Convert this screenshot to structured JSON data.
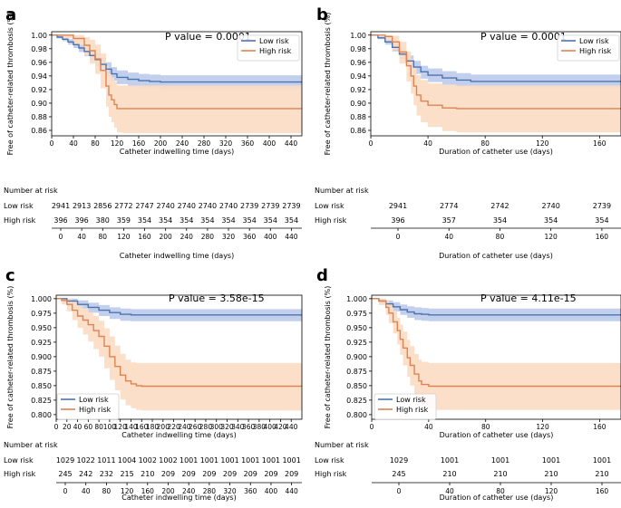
{
  "colors": {
    "low": "#4C72B0",
    "high": "#DD8452",
    "low_band": "#B9C8EA",
    "high_band": "#FBDCC3"
  },
  "chart_data": [
    {
      "panel": "a",
      "type": "line",
      "title": "",
      "pvalue": "P value = 0.0001",
      "ylabel": "Free of catheter-related thrombosis (%)",
      "xlabel": "Catheter indwelling time (days)",
      "xlim": [
        0,
        460
      ],
      "ylim": [
        0.852,
        1.005
      ],
      "xticks": [
        0,
        40,
        80,
        120,
        160,
        200,
        240,
        280,
        320,
        360,
        400,
        440
      ],
      "yticks": [
        1.0,
        0.98,
        0.96,
        0.94,
        0.92,
        0.9,
        0.88,
        0.86
      ],
      "ytick_labels": [
        "1.00",
        "0.98",
        "0.96",
        "0.94",
        "0.92",
        "0.90",
        "0.88",
        "0.86"
      ],
      "legend": {
        "position": "top-right",
        "entries": [
          "Low risk",
          "High risk"
        ]
      },
      "series": [
        {
          "name": "Low risk",
          "x": [
            0,
            10,
            20,
            30,
            40,
            50,
            60,
            70,
            80,
            90,
            100,
            110,
            120,
            140,
            160,
            180,
            200,
            460
          ],
          "y": [
            1.0,
            0.997,
            0.994,
            0.99,
            0.986,
            0.981,
            0.976,
            0.97,
            0.964,
            0.957,
            0.95,
            0.943,
            0.938,
            0.935,
            0.933,
            0.932,
            0.931,
            0.931
          ],
          "lower": [
            1.0,
            0.995,
            0.991,
            0.986,
            0.981,
            0.975,
            0.969,
            0.962,
            0.955,
            0.947,
            0.94,
            0.933,
            0.928,
            0.925,
            0.923,
            0.922,
            0.921,
            0.921
          ],
          "upper": [
            1.0,
            0.999,
            0.997,
            0.994,
            0.991,
            0.987,
            0.983,
            0.978,
            0.973,
            0.967,
            0.96,
            0.953,
            0.948,
            0.945,
            0.943,
            0.942,
            0.941,
            0.941
          ]
        },
        {
          "name": "High risk",
          "x": [
            0,
            20,
            40,
            60,
            70,
            80,
            90,
            100,
            105,
            110,
            115,
            120,
            130,
            460
          ],
          "y": [
            1.0,
            1.0,
            0.995,
            0.985,
            0.977,
            0.965,
            0.948,
            0.925,
            0.912,
            0.905,
            0.898,
            0.892,
            0.892,
            0.892
          ],
          "lower": [
            1.0,
            0.995,
            0.985,
            0.97,
            0.958,
            0.943,
            0.922,
            0.895,
            0.88,
            0.872,
            0.864,
            0.857,
            0.856,
            0.856
          ],
          "upper": [
            1.0,
            1.0,
            1.0,
            0.997,
            0.993,
            0.986,
            0.973,
            0.955,
            0.944,
            0.938,
            0.932,
            0.926,
            0.926,
            0.926
          ]
        }
      ],
      "risk_table": {
        "header": "Number at risk",
        "rows": [
          {
            "label": "Low risk",
            "values": [
              "2941",
              "2913",
              "2856",
              "2772",
              "2747",
              "2740",
              "2740",
              "2740",
              "2740",
              "2739",
              "2739",
              "2739"
            ]
          },
          {
            "label": "High risk",
            "values": [
              "396",
              "396",
              "380",
              "359",
              "354",
              "354",
              "354",
              "354",
              "354",
              "354",
              "354",
              "354"
            ]
          }
        ],
        "xticks": [
          0,
          40,
          80,
          120,
          160,
          200,
          240,
          280,
          320,
          360,
          400,
          440
        ],
        "xlabel": "Catheter indwelling time (days)"
      }
    },
    {
      "panel": "b",
      "type": "line",
      "title": "",
      "pvalue": "P value = 0.0001",
      "ylabel": "Free of catheter-related thrombosis (%)",
      "xlabel": "Duration of catheter use (days)",
      "xlim": [
        0,
        175
      ],
      "ylim": [
        0.852,
        1.005
      ],
      "xticks": [
        0,
        40,
        80,
        120,
        160
      ],
      "yticks": [
        1.0,
        0.98,
        0.96,
        0.94,
        0.92,
        0.9,
        0.88,
        0.86
      ],
      "ytick_labels": [
        "1.00",
        "0.98",
        "0.96",
        "0.94",
        "0.92",
        "0.90",
        "0.88",
        "0.86"
      ],
      "legend": {
        "position": "top-right",
        "entries": [
          "Low risk",
          "High risk"
        ]
      },
      "series": [
        {
          "name": "Low risk",
          "x": [
            0,
            5,
            10,
            15,
            20,
            25,
            30,
            35,
            40,
            50,
            60,
            70,
            175
          ],
          "y": [
            1.0,
            0.996,
            0.99,
            0.982,
            0.972,
            0.962,
            0.953,
            0.946,
            0.941,
            0.937,
            0.934,
            0.932,
            0.931
          ],
          "lower": [
            1.0,
            0.994,
            0.986,
            0.976,
            0.965,
            0.953,
            0.943,
            0.936,
            0.931,
            0.927,
            0.924,
            0.922,
            0.921
          ],
          "upper": [
            1.0,
            0.998,
            0.994,
            0.988,
            0.979,
            0.97,
            0.962,
            0.955,
            0.951,
            0.947,
            0.944,
            0.942,
            0.941
          ]
        },
        {
          "name": "High risk",
          "x": [
            0,
            10,
            15,
            20,
            25,
            28,
            30,
            32,
            35,
            40,
            50,
            60,
            175
          ],
          "y": [
            1.0,
            0.998,
            0.99,
            0.975,
            0.955,
            0.94,
            0.925,
            0.912,
            0.903,
            0.897,
            0.893,
            0.892,
            0.892
          ],
          "lower": [
            1.0,
            0.992,
            0.978,
            0.958,
            0.932,
            0.914,
            0.897,
            0.882,
            0.872,
            0.865,
            0.859,
            0.857,
            0.856
          ],
          "upper": [
            1.0,
            1.0,
            0.999,
            0.99,
            0.976,
            0.965,
            0.952,
            0.941,
            0.934,
            0.929,
            0.927,
            0.926,
            0.926
          ]
        }
      ],
      "risk_table": {
        "header": "Number at risk",
        "rows": [
          {
            "label": "Low risk",
            "values": [
              "2941",
              "2774",
              "2742",
              "2740",
              "2739"
            ]
          },
          {
            "label": "High risk",
            "values": [
              "396",
              "357",
              "354",
              "354",
              "354"
            ]
          }
        ],
        "xticks": [
          0,
          40,
          80,
          120,
          160
        ],
        "xlabel": "Duration of catheter use (days)"
      }
    },
    {
      "panel": "c",
      "type": "line",
      "title": "",
      "pvalue": "P value = 3.58e-15",
      "ylabel": "Free of catheter-related thrombosis (%)",
      "xlabel": "Catheter indwelling time (days)",
      "xlim": [
        0,
        460
      ],
      "ylim": [
        0.792,
        1.006
      ],
      "xticks": [
        0,
        20,
        40,
        60,
        80,
        100,
        120,
        140,
        160,
        180,
        200,
        220,
        240,
        260,
        280,
        300,
        320,
        340,
        360,
        380,
        400,
        420,
        440
      ],
      "yticks": [
        1.0,
        0.975,
        0.95,
        0.925,
        0.9,
        0.875,
        0.85,
        0.825,
        0.8
      ],
      "ytick_labels": [
        "1.000",
        "0.975",
        "0.950",
        "0.925",
        "0.900",
        "0.875",
        "0.850",
        "0.825",
        "0.800"
      ],
      "legend": {
        "position": "bottom-left",
        "entries": [
          "Low risk",
          "High risk"
        ]
      },
      "series": [
        {
          "name": "Low risk",
          "x": [
            0,
            20,
            40,
            60,
            80,
            100,
            120,
            140,
            460
          ],
          "y": [
            1.0,
            0.996,
            0.99,
            0.985,
            0.98,
            0.976,
            0.973,
            0.972,
            0.972
          ],
          "lower": [
            1.0,
            0.991,
            0.983,
            0.976,
            0.97,
            0.965,
            0.962,
            0.961,
            0.961
          ],
          "upper": [
            1.0,
            1.0,
            0.997,
            0.993,
            0.989,
            0.985,
            0.983,
            0.982,
            0.982
          ]
        },
        {
          "name": "High risk",
          "x": [
            0,
            10,
            20,
            30,
            40,
            50,
            60,
            70,
            80,
            90,
            100,
            110,
            120,
            130,
            140,
            150,
            160,
            460
          ],
          "y": [
            1.0,
            0.997,
            0.99,
            0.98,
            0.97,
            0.963,
            0.955,
            0.945,
            0.935,
            0.918,
            0.9,
            0.883,
            0.868,
            0.858,
            0.853,
            0.85,
            0.849,
            0.849
          ],
          "lower": [
            1.0,
            0.99,
            0.978,
            0.963,
            0.95,
            0.938,
            0.926,
            0.913,
            0.9,
            0.88,
            0.86,
            0.842,
            0.826,
            0.816,
            0.811,
            0.808,
            0.807,
            0.807
          ],
          "upper": [
            1.0,
            1.0,
            1.0,
            0.995,
            0.988,
            0.983,
            0.977,
            0.97,
            0.962,
            0.949,
            0.935,
            0.919,
            0.905,
            0.895,
            0.89,
            0.889,
            0.889,
            0.889
          ]
        }
      ],
      "risk_table": {
        "header": "Number at risk",
        "rows": [
          {
            "label": "Low risk",
            "values": [
              "1029",
              "1022",
              "1011",
              "1004",
              "1002",
              "1002",
              "1001",
              "1001",
              "1001",
              "1001",
              "1001",
              "1001"
            ]
          },
          {
            "label": "High risk",
            "values": [
              "245",
              "242",
              "232",
              "215",
              "210",
              "209",
              "209",
              "209",
              "209",
              "209",
              "209",
              "209"
            ]
          }
        ],
        "xticks": [
          0,
          40,
          80,
          120,
          160,
          200,
          240,
          280,
          320,
          360,
          400,
          440
        ],
        "xlabel": "Catheter indwelling time (days)"
      }
    },
    {
      "panel": "d",
      "type": "line",
      "title": "",
      "pvalue": "P value = 4.11e-15",
      "ylabel": "Free of catheter-related thrombosis (%)",
      "xlabel": "Duration of catheter use (days)",
      "xlim": [
        0,
        175
      ],
      "ylim": [
        0.792,
        1.006
      ],
      "xticks": [
        0,
        40,
        80,
        120,
        160
      ],
      "yticks": [
        1.0,
        0.975,
        0.95,
        0.925,
        0.9,
        0.875,
        0.85,
        0.825,
        0.8
      ],
      "ytick_labels": [
        "1.000",
        "0.975",
        "0.950",
        "0.925",
        "0.900",
        "0.875",
        "0.850",
        "0.825",
        "0.800"
      ],
      "legend": {
        "position": "center-right",
        "entries": [
          "Low risk",
          "High risk"
        ]
      },
      "series": [
        {
          "name": "Low risk",
          "x": [
            0,
            5,
            10,
            15,
            20,
            25,
            30,
            35,
            40,
            175
          ],
          "y": [
            1.0,
            0.996,
            0.991,
            0.986,
            0.981,
            0.977,
            0.974,
            0.973,
            0.972,
            0.972
          ],
          "lower": [
            1.0,
            0.992,
            0.985,
            0.978,
            0.972,
            0.967,
            0.963,
            0.962,
            0.961,
            0.961
          ],
          "upper": [
            1.0,
            0.999,
            0.997,
            0.994,
            0.99,
            0.987,
            0.985,
            0.984,
            0.983,
            0.983
          ]
        },
        {
          "name": "High risk",
          "x": [
            0,
            5,
            10,
            12,
            15,
            18,
            20,
            22,
            25,
            27,
            30,
            33,
            35,
            40,
            175
          ],
          "y": [
            1.0,
            0.996,
            0.985,
            0.975,
            0.96,
            0.945,
            0.93,
            0.915,
            0.898,
            0.885,
            0.87,
            0.858,
            0.852,
            0.849,
            0.849
          ],
          "lower": [
            1.0,
            0.989,
            0.972,
            0.958,
            0.94,
            0.921,
            0.903,
            0.885,
            0.865,
            0.85,
            0.834,
            0.82,
            0.812,
            0.808,
            0.807
          ],
          "upper": [
            1.0,
            1.0,
            0.997,
            0.99,
            0.979,
            0.967,
            0.955,
            0.943,
            0.929,
            0.918,
            0.905,
            0.895,
            0.891,
            0.889,
            0.889
          ]
        }
      ],
      "risk_table": {
        "header": "Number at risk",
        "rows": [
          {
            "label": "Low risk",
            "values": [
              "1029",
              "1001",
              "1001",
              "1001",
              "1001"
            ]
          },
          {
            "label": "High risk",
            "values": [
              "245",
              "210",
              "210",
              "210",
              "210"
            ]
          }
        ],
        "xticks": [
          0,
          40,
          80,
          120,
          160
        ],
        "xlabel": "Duration of catheter use (days)"
      }
    }
  ]
}
